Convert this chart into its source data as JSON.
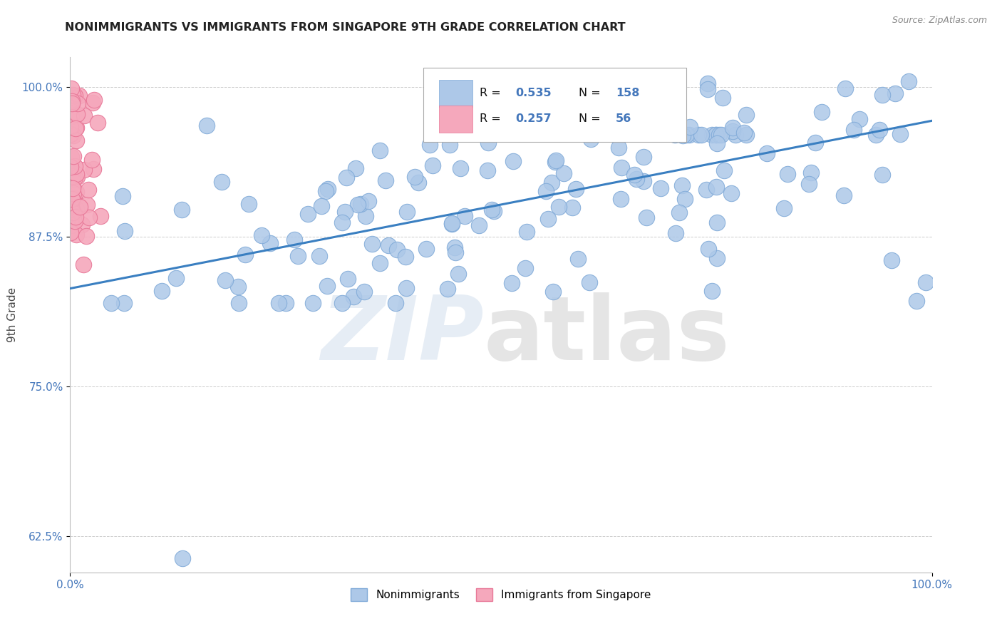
{
  "title": "NONIMMIGRANTS VS IMMIGRANTS FROM SINGAPORE 9TH GRADE CORRELATION CHART",
  "source_text": "Source: ZipAtlas.com",
  "ylabel": "9th Grade",
  "xlim": [
    0.0,
    1.0
  ],
  "ylim": [
    0.595,
    1.025
  ],
  "yticks": [
    0.625,
    0.75,
    0.875,
    1.0
  ],
  "ytick_labels": [
    "62.5%",
    "75.0%",
    "87.5%",
    "100.0%"
  ],
  "blue_R": 0.535,
  "blue_N": 158,
  "pink_R": 0.257,
  "pink_N": 56,
  "blue_color": "#adc8e8",
  "pink_color": "#f5a8bc",
  "blue_edge": "#80aad8",
  "pink_edge": "#e87898",
  "trend_color": "#3a7fc1",
  "trend_start_x": 0.0,
  "trend_start_y": 0.832,
  "trend_end_x": 1.0,
  "trend_end_y": 0.972,
  "title_color": "#222222",
  "axis_label_color": "#444444",
  "tick_color": "#4477bb",
  "background_color": "#ffffff",
  "grid_color": "#cccccc",
  "source_color": "#888888"
}
